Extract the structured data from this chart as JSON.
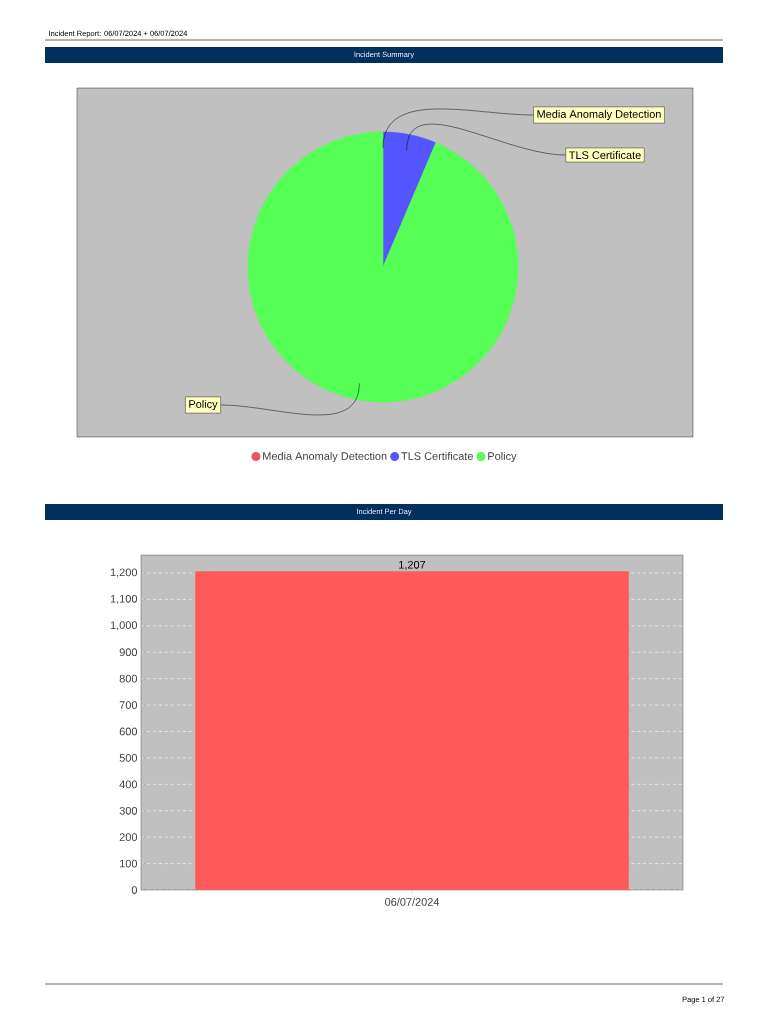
{
  "chart_data": [
    {
      "type": "pie",
      "title": "Incident Summary",
      "categories": [
        "Media Anomaly Detection",
        "TLS Certificate",
        "Policy"
      ],
      "values": [
        0,
        6.4,
        93.6
      ],
      "colors": [
        "#ee5555",
        "#5555ff",
        "#55ff55"
      ],
      "legend": "bottom",
      "annotations": [
        "Incident Report: 06/07/2024 + 06/07/2024"
      ]
    },
    {
      "type": "bar",
      "title": "Incident Per Day",
      "categories": [
        "06/07/2024"
      ],
      "values": [
        1207
      ],
      "color": "#ff5b5b",
      "value_labels": [
        "1,207"
      ],
      "ylim": [
        0,
        1268
      ],
      "yticks": [
        0,
        100,
        200,
        300,
        400,
        500,
        600,
        700,
        800,
        900,
        {
          "value": 1000,
          "label": "1,000"
        },
        {
          "value": 1100,
          "label": "1,100"
        },
        {
          "value": 1200,
          "label": "1,200"
        }
      ],
      "grid": "y",
      "annotations": [
        "Page 1 of 27"
      ]
    }
  ]
}
